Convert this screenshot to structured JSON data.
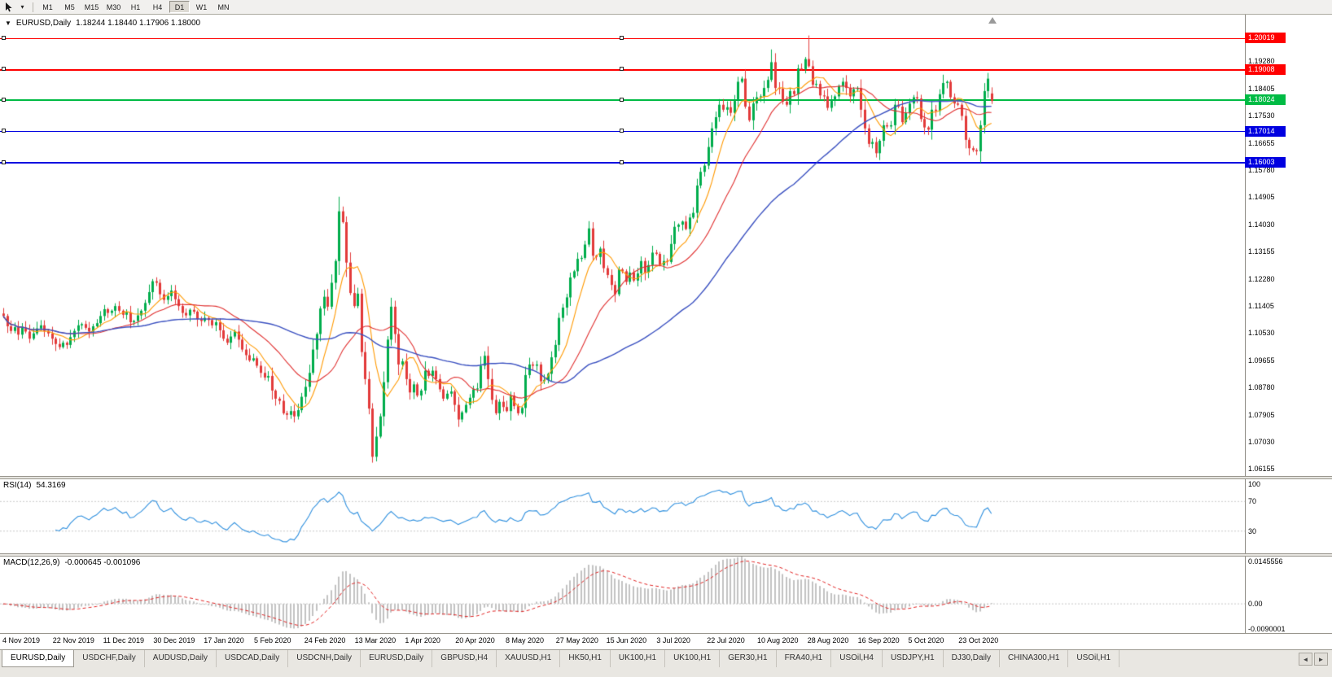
{
  "toolbar": {
    "timeframes": [
      {
        "label": "M1"
      },
      {
        "label": "M5"
      },
      {
        "label": "M15"
      },
      {
        "label": "M30"
      },
      {
        "label": "H1"
      },
      {
        "label": "H4"
      },
      {
        "label": "D1",
        "active": true
      },
      {
        "label": "W1"
      },
      {
        "label": "MN"
      }
    ]
  },
  "chart": {
    "title": {
      "symbol": "EURUSD,Daily",
      "ohlc": "1.18244 1.18440 1.17906 1.18000"
    },
    "price_ticks": [
      "1.19280",
      "1.18405",
      "1.17530",
      "1.16655",
      "1.15780",
      "1.14905",
      "1.14030",
      "1.13155",
      "1.12280",
      "1.11405",
      "1.10530",
      "1.09655",
      "1.08780",
      "1.07905",
      "1.07030",
      "1.06155"
    ],
    "hlines": [
      {
        "label": "1.20019",
        "value": 1.20019,
        "color": "#FF0000",
        "thickness": 1
      },
      {
        "label": "1.19008",
        "value": 1.19008,
        "color": "#FF0000",
        "thickness": 2
      },
      {
        "label": "1.18024",
        "value": 1.18024,
        "color": "#00BB44",
        "thickness": 2
      },
      {
        "label": "1.17014",
        "value": 1.17014,
        "color": "#0000E0",
        "thickness": 1
      },
      {
        "label": "1.16003",
        "value": 1.16003,
        "color": "#0000E0",
        "thickness": 2
      }
    ],
    "dates": [
      "4 Nov 2019",
      "22 Nov 2019",
      "11 Dec 2019",
      "30 Dec 2019",
      "17 Jan 2020",
      "5 Feb 2020",
      "24 Feb 2020",
      "13 Mar 2020",
      "1 Apr 2020",
      "20 Apr 2020",
      "8 May 2020",
      "27 May 2020",
      "15 Jun 2020",
      "3 Jul 2020",
      "22 Jul 2020",
      "10 Aug 2020",
      "28 Aug 2020",
      "16 Sep 2020",
      "5 Oct 2020",
      "23 Oct 2020"
    ]
  },
  "rsi": {
    "name": "RSI(14)",
    "value": "54.3169",
    "ticks": [
      {
        "label": "100",
        "value": 100
      },
      {
        "label": "70",
        "value": 70
      },
      {
        "label": "30",
        "value": 30
      }
    ],
    "levels": [
      70,
      30
    ]
  },
  "macd": {
    "name": "MACD(12,26,9)",
    "values": "-0.000645 -0.001096",
    "ticks": [
      {
        "label": "0.0145556",
        "value": 0.0145556
      },
      {
        "label": "0.00",
        "value": 0
      },
      {
        "label": "-0.0090001",
        "value": -0.0090001
      }
    ],
    "range": [
      -0.0090001,
      0.0145556
    ]
  },
  "tabs": {
    "items": [
      {
        "label": "EURUSD,Daily",
        "active": true
      },
      {
        "label": "USDCHF,Daily"
      },
      {
        "label": "AUDUSD,Daily"
      },
      {
        "label": "USDCAD,Daily"
      },
      {
        "label": "USDCNH,Daily"
      },
      {
        "label": "EURUSD,Daily"
      },
      {
        "label": "GBPUSD,H4"
      },
      {
        "label": "XAUUSD,H1"
      },
      {
        "label": "HK50,H1"
      },
      {
        "label": "UK100,H1"
      },
      {
        "label": "UK100,H1"
      },
      {
        "label": "GER30,H1"
      },
      {
        "label": "FRA40,H1"
      },
      {
        "label": "USOil,H4"
      },
      {
        "label": "USDJPY,H1"
      },
      {
        "label": "DJ30,Daily"
      },
      {
        "label": "CHINA300,H1"
      },
      {
        "label": "USOil,H1"
      }
    ],
    "nav": [
      "◄",
      "►"
    ]
  },
  "colors": {
    "bull": "#00AD4C",
    "bear": "#E23A3A",
    "ma_fast": "#FF9900",
    "ma_mid": "#E03030",
    "ma_slow": "#3A50C0",
    "rsi": "#2E8FDE",
    "macd_hist": "#C2C2C2",
    "macd_signal": "#E02020",
    "level_dotted": "#C8C8C8"
  },
  "chart_data": {
    "type": "candlestick",
    "symbol": "EURUSD",
    "period": "Daily",
    "title": "EURUSD,Daily",
    "ylim": [
      1.0593,
      1.2078
    ],
    "x_first_label": "4 Nov 2019",
    "x_last_label": "23 Oct 2020",
    "ma_periods": [
      8,
      21,
      55
    ],
    "rsi_period": 14,
    "macd_params": [
      12,
      26,
      9
    ],
    "closes": [
      1.1108,
      1.1075,
      1.106,
      1.1072,
      1.1048,
      1.107,
      1.1058,
      1.1035,
      1.1052,
      1.1068,
      1.1078,
      1.106,
      1.1052,
      1.1035,
      1.1018,
      1.1008,
      1.1022,
      1.1015,
      1.104,
      1.106,
      1.1078,
      1.1082,
      1.107,
      1.1058,
      1.1075,
      1.1085,
      1.1108,
      1.113,
      1.1118,
      1.1125,
      1.114,
      1.1125,
      1.1112,
      1.112,
      1.1088,
      1.1092,
      1.111,
      1.1125,
      1.115,
      1.1185,
      1.122,
      1.1215,
      1.1178,
      1.116,
      1.1172,
      1.119,
      1.1162,
      1.114,
      1.1118,
      1.111,
      1.1128,
      1.1122,
      1.1098,
      1.1092,
      1.1102,
      1.1095,
      1.1078,
      1.1088,
      1.1062,
      1.1035,
      1.1022,
      1.1042,
      1.1058,
      1.1032,
      1.1,
      1.0982,
      1.0965,
      1.0972,
      1.0948,
      1.0925,
      1.091,
      1.0915,
      1.0868,
      1.0842,
      1.0835,
      1.0795,
      1.079,
      1.0802,
      1.0785,
      1.0805,
      1.0848,
      1.088,
      1.0925,
      1.1,
      1.105,
      1.1132,
      1.117,
      1.1138,
      1.1215,
      1.1285,
      1.1445,
      1.141,
      1.128,
      1.1182,
      1.114,
      1.118,
      1.0992,
      1.0905,
      1.081,
      1.0655,
      1.072,
      1.0785,
      1.0895,
      1.1032,
      1.1138,
      1.105,
      1.0952,
      1.0962,
      1.0905,
      1.0862,
      1.0888,
      1.0852,
      1.0868,
      1.0932,
      1.0915,
      1.0932,
      1.0905,
      1.0872,
      1.0842,
      1.0858,
      1.0865,
      1.0822,
      1.0775,
      1.0798,
      1.0822,
      1.0845,
      1.0872,
      1.0875,
      1.0948,
      1.098,
      1.0905,
      1.0838,
      1.0795,
      1.0832,
      1.0815,
      1.0802,
      1.0852,
      1.0818,
      1.0795,
      1.0812,
      1.0918,
      1.0952,
      1.0948,
      1.0952,
      1.0898,
      1.0902,
      1.0922,
      1.0975,
      1.1015,
      1.1102,
      1.1135,
      1.1168,
      1.1232,
      1.1252,
      1.1292,
      1.1295,
      1.1338,
      1.139,
      1.1302,
      1.1298,
      1.1325,
      1.1262,
      1.124,
      1.1208,
      1.1178,
      1.1258,
      1.1252,
      1.1218,
      1.1248,
      1.1222,
      1.1245,
      1.1285,
      1.1248,
      1.1272,
      1.1312,
      1.1308,
      1.1272,
      1.1285,
      1.1282,
      1.134,
      1.1395,
      1.1402,
      1.1412,
      1.1388,
      1.1425,
      1.144,
      1.1528,
      1.1572,
      1.1592,
      1.1652,
      1.1712,
      1.1748,
      1.1788,
      1.1772,
      1.178,
      1.1762,
      1.1802,
      1.1862,
      1.1872,
      1.1782,
      1.1738,
      1.1792,
      1.1812,
      1.1815,
      1.1842,
      1.1868,
      1.1925,
      1.1842,
      1.184,
      1.1798,
      1.1788,
      1.1832,
      1.1822,
      1.1905,
      1.1902,
      1.1935,
      1.1912,
      1.1852,
      1.1855,
      1.1818,
      1.1815,
      1.1778,
      1.1802,
      1.1815,
      1.1848,
      1.1862,
      1.1842,
      1.1815,
      1.1838,
      1.1842,
      1.1772,
      1.1712,
      1.1662,
      1.1668,
      1.1632,
      1.1672,
      1.1722,
      1.1718,
      1.1722,
      1.1788,
      1.1782,
      1.1732,
      1.1762,
      1.1792,
      1.1812,
      1.1808,
      1.1742,
      1.1715,
      1.1708,
      1.1772,
      1.1768,
      1.1822,
      1.1858,
      1.1862,
      1.1812,
      1.1792,
      1.1788,
      1.1752,
      1.1675,
      1.1648,
      1.1642,
      1.1638,
      1.1722,
      1.1832,
      1.1872,
      1.18
    ],
    "overrides": {
      "90": {
        "h": 1.1492,
        "l": 1.124
      },
      "99": {
        "l": 1.0636
      },
      "206": {
        "h": 1.1966
      },
      "216": {
        "h": 1.2011
      },
      "265": {
        "o": 1.18244,
        "h": 1.1844,
        "l": 1.17906
      }
    }
  }
}
